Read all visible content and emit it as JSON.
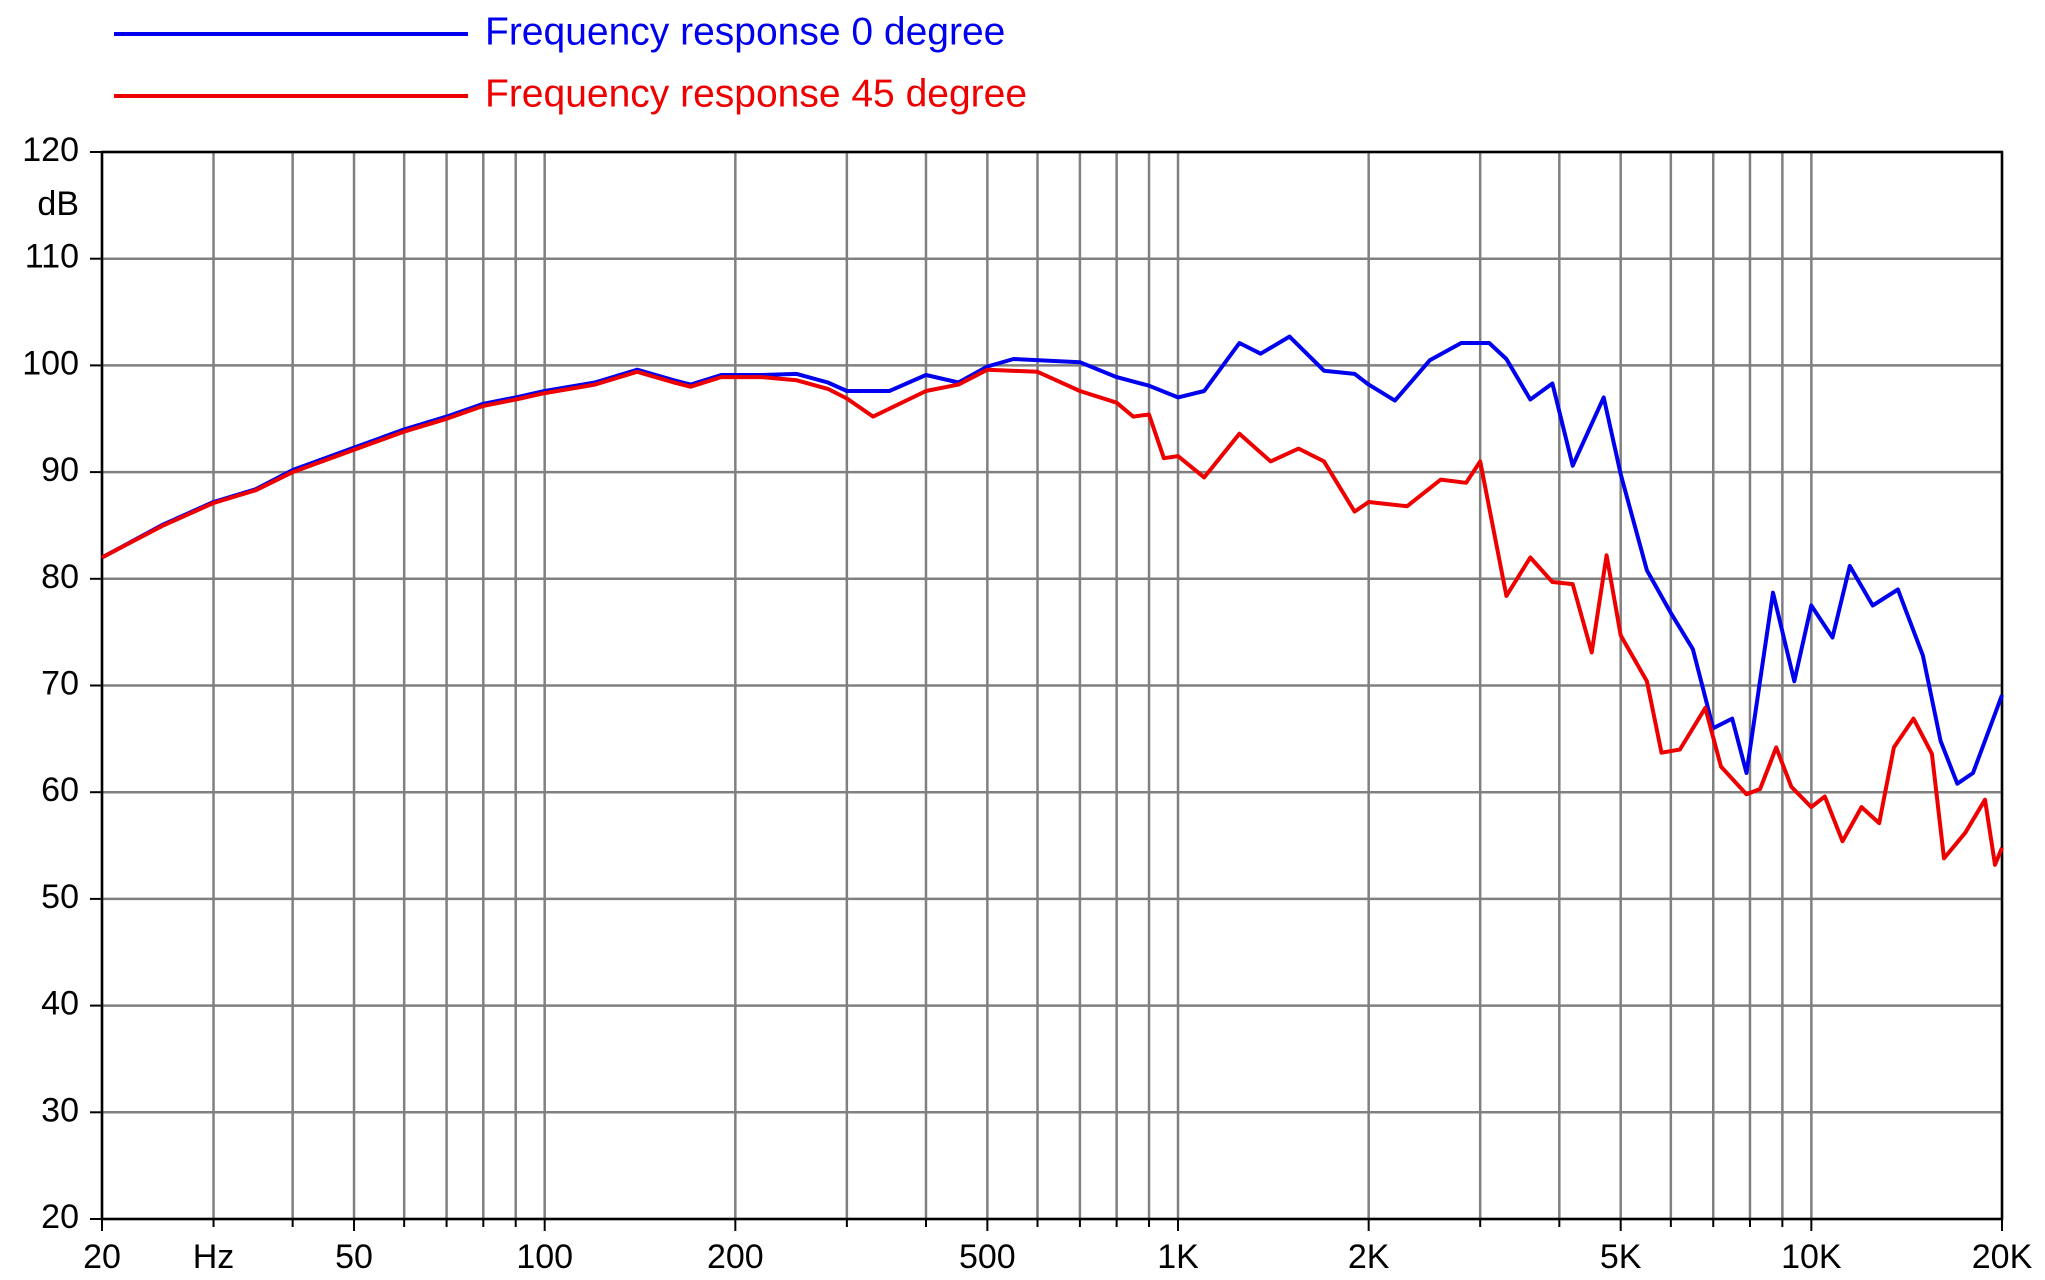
{
  "chart_data": {
    "type": "line",
    "xlabel": "Hz",
    "ylabel": "dB",
    "xlog": true,
    "grid": true,
    "xlim": [
      20,
      20000
    ],
    "ylim": [
      20,
      120
    ],
    "xticks": [
      20,
      50,
      100,
      200,
      500,
      {
        "value": 1000,
        "label": "1K"
      },
      {
        "value": 2000,
        "label": "2K"
      },
      {
        "value": 5000,
        "label": "5K"
      },
      {
        "value": 10000,
        "label": "10K"
      },
      {
        "value": 20000,
        "label": "20K"
      }
    ],
    "xminor": [
      30,
      40,
      60,
      70,
      80,
      90,
      300,
      400,
      600,
      700,
      800,
      900,
      3000,
      4000,
      6000,
      7000,
      8000,
      9000
    ],
    "yticks": [
      20,
      30,
      40,
      50,
      60,
      70,
      80,
      90,
      100,
      110,
      120
    ],
    "series": [
      {
        "name": "Frequency response 0 degree",
        "color": "#0000ee",
        "x": [
          20,
          25,
          30,
          35,
          40,
          50,
          60,
          70,
          80,
          90,
          100,
          120,
          140,
          160,
          170,
          190,
          220,
          250,
          280,
          300,
          350,
          400,
          450,
          500,
          550,
          700,
          800,
          900,
          1000,
          1100,
          1250,
          1350,
          1500,
          1700,
          1900,
          2000,
          2200,
          2500,
          2800,
          3100,
          3300,
          3600,
          3900,
          4200,
          4700,
          5000,
          5500,
          6000,
          6500,
          7000,
          7500,
          7900,
          8700,
          9400,
          10000,
          10800,
          11500,
          12500,
          13700,
          15000,
          16000,
          17000,
          18000,
          20000
        ],
        "values": [
          82,
          85.1,
          87.2,
          88.4,
          90.2,
          92.3,
          94,
          95.2,
          96.4,
          97,
          97.6,
          98.4,
          99.6,
          98.6,
          98.2,
          99.1,
          99.1,
          99.2,
          98.4,
          97.6,
          97.6,
          99.1,
          98.4,
          99.9,
          100.6,
          100.3,
          98.9,
          98.1,
          97,
          97.6,
          102.1,
          101.1,
          102.7,
          99.5,
          99.2,
          98.2,
          96.7,
          100.5,
          102.1,
          102.1,
          100.6,
          96.8,
          98.3,
          90.6,
          97,
          89.8,
          80.8,
          76.8,
          73.4,
          66,
          66.9,
          61.8,
          78.7,
          70.4,
          77.5,
          74.5,
          81.2,
          77.5,
          79,
          72.8,
          64.8,
          60.8,
          61.8,
          69.1
        ]
      },
      {
        "name": "Frequency response 45 degree",
        "color": "#ee0000",
        "x": [
          20,
          25,
          30,
          35,
          40,
          50,
          60,
          70,
          80,
          90,
          100,
          120,
          140,
          160,
          170,
          190,
          220,
          250,
          280,
          300,
          330,
          400,
          450,
          500,
          600,
          700,
          800,
          850,
          900,
          950,
          1000,
          1100,
          1250,
          1400,
          1550,
          1700,
          1900,
          2000,
          2300,
          2600,
          2850,
          3000,
          3300,
          3600,
          3900,
          4200,
          4500,
          4750,
          5000,
          5500,
          5800,
          6200,
          6800,
          7200,
          7900,
          8300,
          8800,
          9300,
          10000,
          10500,
          11200,
          12000,
          12800,
          13500,
          14500,
          15500,
          16200,
          17500,
          18800,
          19500,
          20000
        ],
        "values": [
          82,
          85,
          87.1,
          88.3,
          90,
          92.1,
          93.8,
          95,
          96.2,
          96.8,
          97.4,
          98.2,
          99.4,
          98.4,
          98,
          98.9,
          98.9,
          98.6,
          97.8,
          96.9,
          95.2,
          97.6,
          98.2,
          99.6,
          99.4,
          97.6,
          96.5,
          95.2,
          95.4,
          91.3,
          91.5,
          89.5,
          93.6,
          91,
          92.2,
          91,
          86.3,
          87.2,
          86.8,
          89.3,
          89,
          91,
          78.4,
          82,
          79.7,
          79.5,
          73.1,
          82.2,
          74.7,
          70.4,
          63.7,
          64,
          67.9,
          62.4,
          59.8,
          60.3,
          64.2,
          60.5,
          58.6,
          59.6,
          55.4,
          58.6,
          57.1,
          64.2,
          66.9,
          63.6,
          53.8,
          56.2,
          59.3,
          53.2,
          54.8
        ]
      }
    ]
  }
}
